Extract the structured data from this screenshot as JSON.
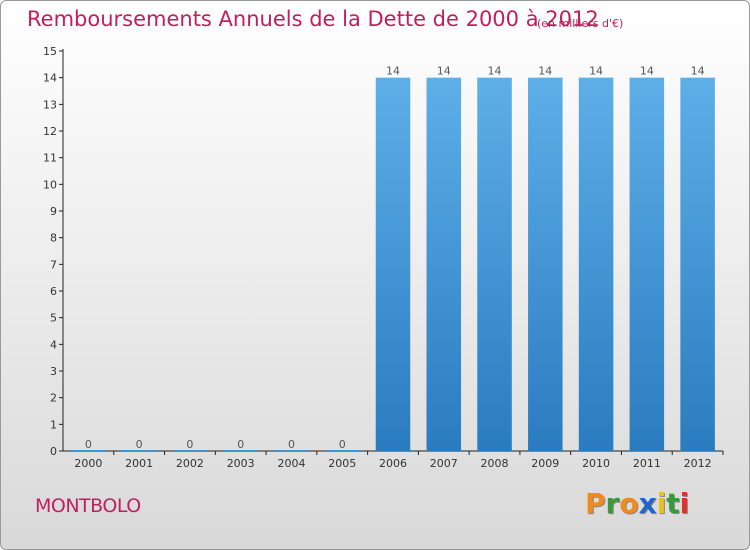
{
  "title": "Remboursements Annuels de la Dette de 2000 à 2012",
  "subtitle": "(en milliers d'€)",
  "city": "MONTBOLO",
  "logo": {
    "letters": [
      "P",
      "r",
      "o",
      "x",
      "i",
      "t",
      "i"
    ],
    "colors": [
      "#f08a1c",
      "#3a9a3a",
      "#f08a1c",
      "#1f66c8",
      "#e8c21e",
      "#3a9a3a",
      "#e0312a"
    ]
  },
  "colors": {
    "title": "#c41e5a",
    "bar": "#3d8fd4"
  },
  "chart_data": {
    "type": "bar",
    "title": "Remboursements Annuels de la Dette de 2000 à 2012",
    "categories": [
      "2000",
      "2001",
      "2002",
      "2003",
      "2004",
      "2005",
      "2006",
      "2007",
      "2008",
      "2009",
      "2010",
      "2011",
      "2012"
    ],
    "values": [
      0,
      0,
      0,
      0,
      0,
      0,
      14,
      14,
      14,
      14,
      14,
      14,
      14
    ],
    "data_labels": [
      "0",
      "0",
      "0",
      "0",
      "0",
      "0",
      "14",
      "14",
      "14",
      "14",
      "14",
      "14",
      "14"
    ],
    "ylim": [
      0,
      15
    ],
    "yticks": [
      0,
      1,
      2,
      3,
      4,
      5,
      6,
      7,
      8,
      9,
      10,
      11,
      12,
      13,
      14,
      15
    ],
    "xlabel": "",
    "ylabel": "",
    "grid": false
  }
}
